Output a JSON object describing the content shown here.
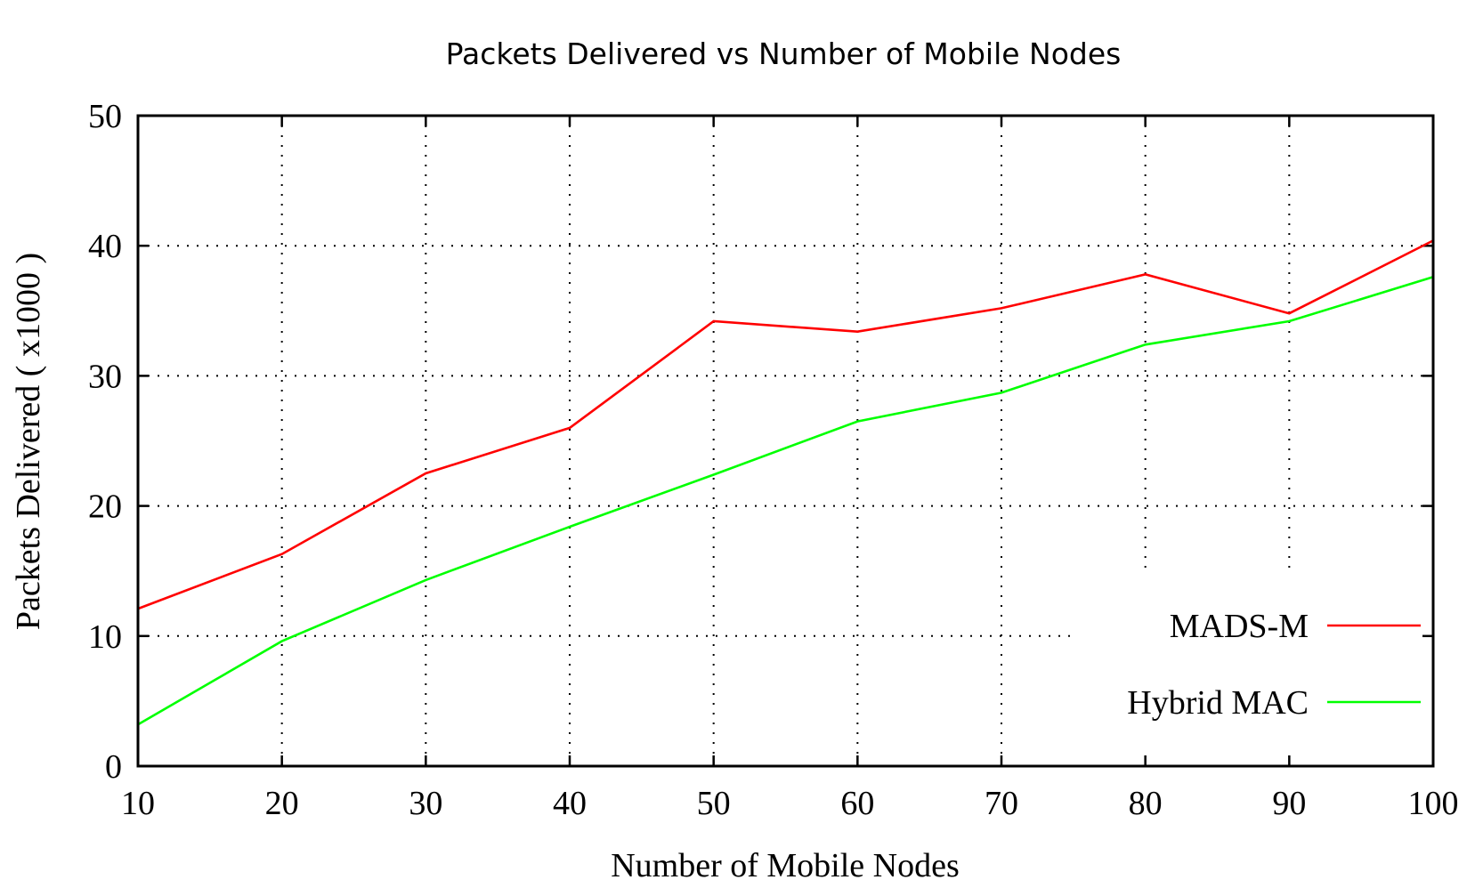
{
  "chart_data": {
    "type": "line",
    "title": "Packets Delivered vs Number of Mobile Nodes",
    "xlabel": "Number of Mobile Nodes",
    "ylabel": "Packets Delivered ( x1000 )",
    "x": [
      10,
      20,
      30,
      40,
      50,
      60,
      70,
      80,
      90,
      100
    ],
    "xlim": [
      10,
      100
    ],
    "ylim": [
      0,
      50
    ],
    "xticks": [
      "10",
      "20",
      "30",
      "40",
      "50",
      "60",
      "70",
      "80",
      "90",
      "100"
    ],
    "yticks": [
      "0",
      "10",
      "20",
      "30",
      "40",
      "50"
    ],
    "grid": true,
    "legend_position": "bottom-right",
    "series": [
      {
        "name": "MADS-M",
        "color": "#ff0000",
        "values": [
          12.1,
          16.3,
          22.5,
          26.0,
          34.2,
          33.4,
          35.2,
          37.8,
          34.8,
          40.4
        ]
      },
      {
        "name": "Hybrid MAC",
        "color": "#00ff00",
        "values": [
          3.2,
          9.6,
          14.3,
          18.4,
          22.4,
          26.5,
          28.7,
          32.4,
          34.2,
          37.6
        ]
      }
    ]
  }
}
